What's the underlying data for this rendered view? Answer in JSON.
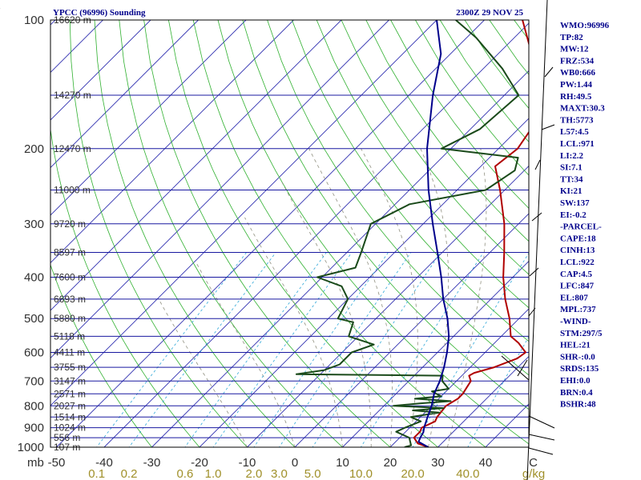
{
  "header": {
    "station": "YPCC (96996) Sounding",
    "time": "2300Z 29 NOV 25"
  },
  "indices": [
    "WMO:96996",
    "TP:82",
    "MW:12",
    "FRZ:534",
    "WB0:666",
    "PW:1.44",
    "RH:49.5",
    "MAXT:30.3",
    "TH:5773",
    "L57:4.5",
    "LCL:971",
    "LI:2.2",
    "SI:7.1",
    "TT:34",
    "KI:21",
    "SW:137",
    "EI:-0.2",
    "-PARCEL-",
    "CAPE:18",
    "CINH:13",
    "LCL:922",
    "CAP:4.5",
    "LFC:847",
    "EL:807",
    "MPL:737",
    "-WIND-",
    "STM:297/5",
    "HEL:21",
    "SHR-:0.0",
    "SRDS:135",
    "EHI:0.0",
    "BRN:0.4",
    "BSHR:48"
  ],
  "chart_data": {
    "type": "line",
    "pressure_levels": [
      {
        "p": 100,
        "label": "100",
        "height": "16620 m"
      },
      {
        "p": 150,
        "label": "",
        "height": "14270 m"
      },
      {
        "p": 200,
        "label": "200",
        "height": "12470 m"
      },
      {
        "p": 250,
        "label": "",
        "height": "11000 m"
      },
      {
        "p": 300,
        "label": "300",
        "height": "9720 m"
      },
      {
        "p": 350,
        "label": "",
        "height": "8597 m"
      },
      {
        "p": 400,
        "label": "400",
        "height": "7600 m"
      },
      {
        "p": 450,
        "label": "",
        "height": "6693 m"
      },
      {
        "p": 500,
        "label": "500",
        "height": "5880 m"
      },
      {
        "p": 550,
        "label": "",
        "height": "5118 m"
      },
      {
        "p": 600,
        "label": "600",
        "height": "4411 m"
      },
      {
        "p": 650,
        "label": "",
        "height": "3755 m"
      },
      {
        "p": 700,
        "label": "700",
        "height": "3147 m"
      },
      {
        "p": 750,
        "label": "",
        "height": "2571 m"
      },
      {
        "p": 800,
        "label": "800",
        "height": "2027 m"
      },
      {
        "p": 850,
        "label": "",
        "height": "1514 m"
      },
      {
        "p": 900,
        "label": "900",
        "height": "1024 m"
      },
      {
        "p": 950,
        "label": "",
        "height": "556 m"
      },
      {
        "p": 1000,
        "label": "1000",
        "height": "107 m"
      }
    ],
    "x_axis_unit": "mb",
    "temperature_ticks": [
      {
        "t": -50,
        "label": "-50"
      },
      {
        "t": -40,
        "label": "-40"
      },
      {
        "t": -30,
        "label": "-30"
      },
      {
        "t": -20,
        "label": "-20"
      },
      {
        "t": -10,
        "label": "-10"
      },
      {
        "t": 0,
        "label": "0"
      },
      {
        "t": 10,
        "label": "10"
      },
      {
        "t": 20,
        "label": "20"
      },
      {
        "t": 30,
        "label": "30"
      },
      {
        "t": 40,
        "label": "40"
      },
      {
        "t": 50,
        "label": "C"
      }
    ],
    "mixing_ratio_ticks": [
      {
        "w": 0.1,
        "label": "0.1"
      },
      {
        "w": 0.2,
        "label": "0.2"
      },
      {
        "w": 0.6,
        "label": "0.6"
      },
      {
        "w": 1.0,
        "label": "1.0"
      },
      {
        "w": 2.0,
        "label": "2.0"
      },
      {
        "w": 3.0,
        "label": "3.0"
      },
      {
        "w": 5.0,
        "label": "5.0"
      },
      {
        "w": 10.0,
        "label": "10.0"
      },
      {
        "w": 20.0,
        "label": "20.0"
      },
      {
        "w": 40.0,
        "label": "40.0"
      }
    ],
    "mixing_ratio_unit": "g/kg",
    "series": [
      {
        "kind": "temperature",
        "color": "#b00000",
        "points": [
          [
            1000,
            28
          ],
          [
            980,
            25
          ],
          [
            950,
            23
          ],
          [
            920,
            23
          ],
          [
            900,
            22.5
          ],
          [
            870,
            24
          ],
          [
            850,
            23.5
          ],
          [
            800,
            23
          ],
          [
            770,
            24
          ],
          [
            750,
            24
          ],
          [
            700,
            23
          ],
          [
            680,
            21.5
          ],
          [
            670,
            22
          ],
          [
            650,
            25
          ],
          [
            620,
            28
          ],
          [
            600,
            28.5
          ],
          [
            570,
            25
          ],
          [
            550,
            22
          ],
          [
            500,
            18
          ],
          [
            450,
            13
          ],
          [
            400,
            8
          ],
          [
            350,
            3
          ],
          [
            300,
            -3
          ],
          [
            250,
            -11
          ],
          [
            220,
            -17
          ],
          [
            200,
            -16
          ],
          [
            170,
            -18
          ],
          [
            150,
            -24
          ],
          [
            130,
            -29
          ],
          [
            100,
            -42
          ]
        ]
      },
      {
        "kind": "dewpoint",
        "color": "#1a4a1a",
        "points": [
          [
            1000,
            23
          ],
          [
            990,
            24
          ],
          [
            970,
            23
          ],
          [
            950,
            22
          ],
          [
            920,
            18
          ],
          [
            900,
            19
          ],
          [
            870,
            21
          ],
          [
            850,
            18
          ],
          [
            830,
            23
          ],
          [
            820,
            17
          ],
          [
            810,
            23
          ],
          [
            800,
            12
          ],
          [
            790,
            17
          ],
          [
            780,
            23
          ],
          [
            770,
            15
          ],
          [
            760,
            20
          ],
          [
            740,
            17
          ],
          [
            730,
            20
          ],
          [
            700,
            17
          ],
          [
            680,
            16
          ],
          [
            675,
            -15
          ],
          [
            660,
            -10
          ],
          [
            640,
            -8
          ],
          [
            600,
            -8
          ],
          [
            575,
            -5
          ],
          [
            550,
            -12
          ],
          [
            510,
            -14
          ],
          [
            500,
            -18
          ],
          [
            450,
            -20
          ],
          [
            420,
            -24
          ],
          [
            400,
            -31
          ],
          [
            380,
            -25
          ],
          [
            350,
            -27
          ],
          [
            300,
            -31
          ],
          [
            270,
            -27
          ],
          [
            250,
            -14
          ],
          [
            225,
            -12
          ],
          [
            210,
            -14
          ],
          [
            200,
            -32
          ],
          [
            180,
            -28
          ],
          [
            150,
            -27
          ],
          [
            130,
            -36
          ],
          [
            110,
            -48
          ],
          [
            100,
            -56
          ]
        ]
      },
      {
        "kind": "parcel",
        "color": "#00008b",
        "points": [
          [
            1000,
            28
          ],
          [
            971,
            24.8
          ],
          [
            950,
            24.3
          ],
          [
            922,
            23.8
          ],
          [
            900,
            23
          ],
          [
            850,
            21.5
          ],
          [
            800,
            20
          ],
          [
            750,
            18
          ],
          [
            700,
            16.5
          ],
          [
            650,
            14.5
          ],
          [
            600,
            12
          ],
          [
            550,
            9
          ],
          [
            500,
            5
          ],
          [
            450,
            0
          ],
          [
            400,
            -5
          ],
          [
            350,
            -11
          ],
          [
            300,
            -18
          ],
          [
            250,
            -26
          ],
          [
            200,
            -35
          ],
          [
            150,
            -45
          ],
          [
            120,
            -52
          ],
          [
            100,
            -60
          ]
        ]
      }
    ]
  }
}
